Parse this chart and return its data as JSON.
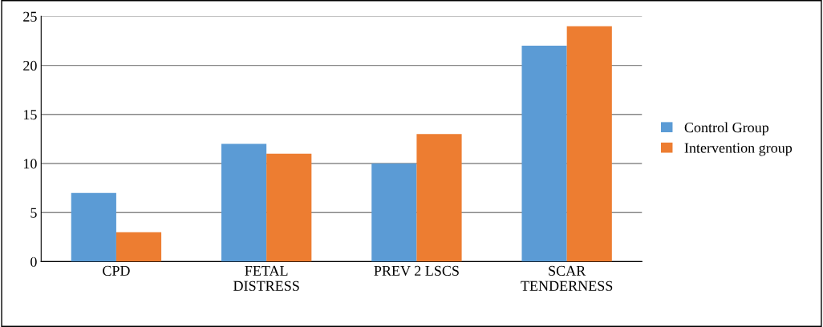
{
  "chart_data": {
    "type": "bar",
    "categories": [
      "CPD",
      "FETAL\nDISTRESS",
      "PREV 2 LSCS",
      "SCAR\nTENDERNESS"
    ],
    "series": [
      {
        "name": "Control Group",
        "color": "#5b9bd5",
        "values": [
          7,
          12,
          10,
          22
        ]
      },
      {
        "name": "Intervention group",
        "color": "#ed7d31",
        "values": [
          3,
          11,
          13,
          24
        ]
      }
    ],
    "ylim": [
      0,
      25
    ],
    "yticks": [
      0,
      5,
      10,
      15,
      20,
      25
    ],
    "grid": "y",
    "legend": "right"
  }
}
